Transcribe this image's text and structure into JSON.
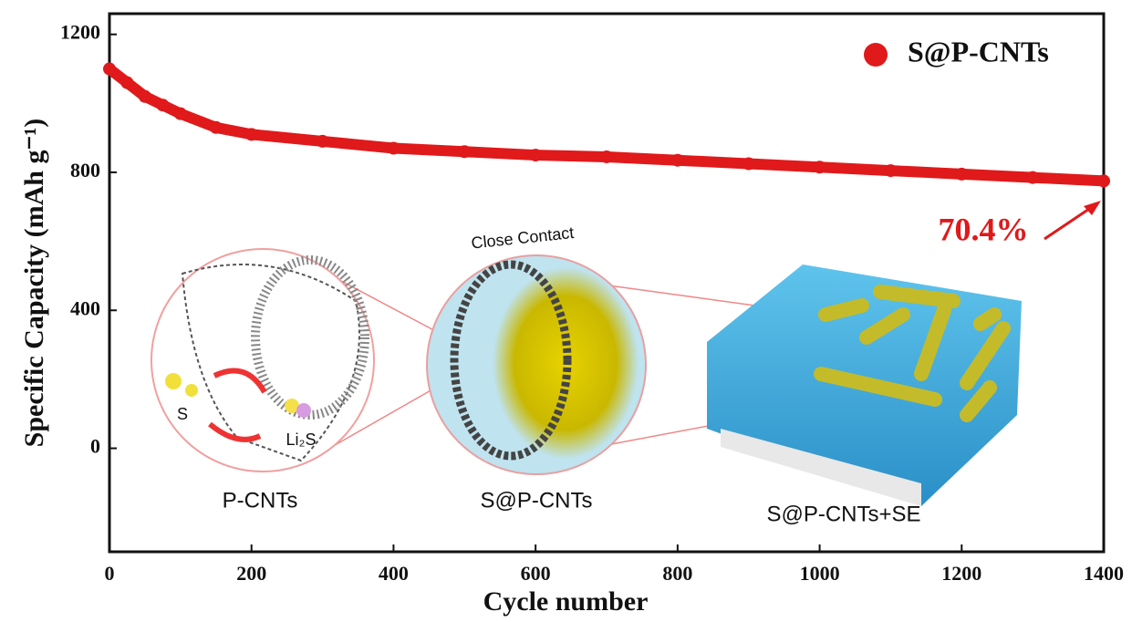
{
  "chart_data": {
    "type": "line",
    "x_label": "Cycle number",
    "y_label": "Specific Capacity (mAh g⁻¹)",
    "x": [
      0,
      25,
      50,
      75,
      100,
      150,
      200,
      300,
      400,
      500,
      600,
      700,
      800,
      900,
      1000,
      1100,
      1200,
      1300,
      1400
    ],
    "series": [
      {
        "name": "S@P-CNTs",
        "color": "#e0191b",
        "values": [
          1100,
          1060,
          1020,
          995,
          970,
          930,
          910,
          890,
          870,
          860,
          850,
          845,
          835,
          825,
          815,
          805,
          795,
          785,
          775
        ]
      }
    ],
    "xlim": [
      0,
      1400
    ],
    "xticks": [
      0,
      200,
      400,
      600,
      800,
      1000,
      1200,
      1400
    ],
    "ylim": [
      -300,
      1260
    ],
    "yticks": [
      0,
      400,
      800,
      1200
    ],
    "legend": "top-right",
    "annotation": "70.4%",
    "inset": {
      "close_contact": "Close Contact",
      "sulfur": "S",
      "li2s": "Li₂S",
      "labels": [
        "P-CNTs",
        "S@P-CNTs",
        "S@P-CNTs+SE"
      ]
    }
  }
}
